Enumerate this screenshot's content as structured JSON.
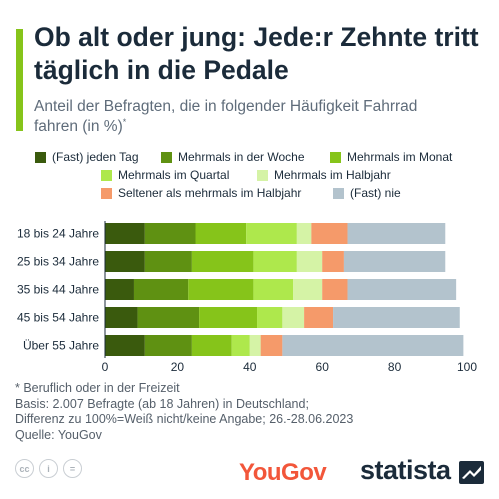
{
  "header": {
    "title": "Ob alt oder jung: Jede:r Zehnte tritt täglich in die Pedale",
    "subtitle": "Anteil der Befragten, die in folgender Häufigkeit Fahrrad fahren (in %)",
    "subtitle_mark": "*"
  },
  "colors": {
    "accent": "#86c41a",
    "daily": "#3a5a0d",
    "weekly": "#5f9112",
    "monthly": "#86c41a",
    "quarterly": "#aee84c",
    "halfyear": "#d5f3a6",
    "rarer": "#f59a6a",
    "never": "#b3c3cd"
  },
  "chart_data": {
    "type": "bar",
    "orientation": "horizontal",
    "stacked": true,
    "categories": [
      "18 bis 24 Jahre",
      "25 bis 34 Jahre",
      "35 bis 44 Jahre",
      "45 bis 54 Jahre",
      "Über 55 Jahre"
    ],
    "series": [
      {
        "name": "(Fast) jeden Tag",
        "color": "#3a5a0d",
        "values": [
          11,
          11,
          8,
          9,
          11
        ]
      },
      {
        "name": "Mehrmals in der Woche",
        "color": "#5f9112",
        "values": [
          14,
          13,
          15,
          17,
          13
        ]
      },
      {
        "name": "Mehrmals im Monat",
        "color": "#86c41a",
        "values": [
          14,
          17,
          18,
          16,
          11
        ]
      },
      {
        "name": "Mehrmals im Quartal",
        "color": "#aee84c",
        "values": [
          14,
          12,
          11,
          7,
          5
        ]
      },
      {
        "name": "Mehrmals im Halbjahr",
        "color": "#d5f3a6",
        "values": [
          4,
          7,
          8,
          6,
          3
        ]
      },
      {
        "name": "Seltener als mehrmals im Halbjahr",
        "color": "#f59a6a",
        "values": [
          10,
          6,
          7,
          8,
          6
        ]
      },
      {
        "name": "(Fast) nie",
        "color": "#b3c3cd",
        "values": [
          27,
          28,
          30,
          35,
          50
        ]
      }
    ],
    "xlim": [
      0,
      100
    ],
    "xticks": [
      0,
      20,
      40,
      60,
      80,
      100
    ],
    "grid": false,
    "legend_position": "top"
  },
  "footnotes": {
    "line1": "* Beruflich oder in der Freizeit",
    "line2": "Basis: 2.007 Befragte (ab 18 Jahren) in Deutschland;",
    "line3": "Differenz zu 100%=Weiß nicht/keine Angabe; 26.-28.06.2023",
    "source": "Quelle: YouGov"
  },
  "branding": {
    "cc_icons": [
      "cc-icon",
      "attribution-icon",
      "no-derivatives-icon"
    ],
    "cc_labels": [
      "cc",
      "i",
      "="
    ],
    "source_logo": "YouGov",
    "publisher_logo": "statista"
  }
}
